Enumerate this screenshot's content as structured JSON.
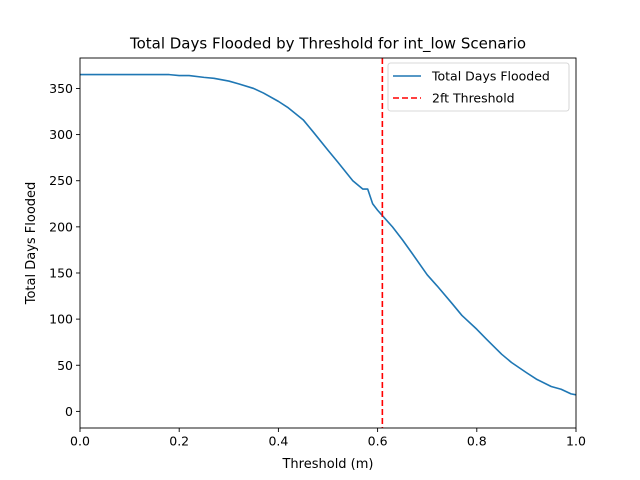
{
  "chart_data": {
    "type": "line",
    "title": "Total Days Flooded by Threshold for int_low Scenario",
    "xlabel": "Threshold (m)",
    "ylabel": "Total Days Flooded",
    "xlim": [
      0.0,
      1.0
    ],
    "ylim": [
      -18,
      383
    ],
    "xticks": [
      0.0,
      0.2,
      0.4,
      0.6,
      0.8,
      1.0
    ],
    "xtick_labels": [
      "0.0",
      "0.2",
      "0.4",
      "0.6",
      "0.8",
      "1.0"
    ],
    "yticks": [
      0,
      50,
      100,
      150,
      200,
      250,
      300,
      350
    ],
    "ytick_labels": [
      "0",
      "50",
      "100",
      "150",
      "200",
      "250",
      "300",
      "350"
    ],
    "grid": false,
    "legend_position": "upper right",
    "series": [
      {
        "name": "Total Days Flooded",
        "color": "#1f77b4",
        "x": [
          0.0,
          0.05,
          0.1,
          0.15,
          0.18,
          0.2,
          0.22,
          0.25,
          0.27,
          0.3,
          0.32,
          0.35,
          0.37,
          0.4,
          0.42,
          0.45,
          0.47,
          0.5,
          0.52,
          0.55,
          0.57,
          0.58,
          0.59,
          0.6,
          0.61,
          0.63,
          0.65,
          0.67,
          0.7,
          0.72,
          0.75,
          0.77,
          0.8,
          0.82,
          0.85,
          0.87,
          0.9,
          0.92,
          0.95,
          0.97,
          0.99,
          1.0
        ],
        "y": [
          365,
          365,
          365,
          365,
          365,
          364,
          364,
          362,
          361,
          358,
          355,
          350,
          345,
          336,
          329,
          316,
          303,
          283,
          270,
          250,
          241,
          241,
          225,
          218,
          212,
          200,
          186,
          171,
          148,
          136,
          117,
          104,
          89,
          78,
          62,
          53,
          42,
          35,
          27,
          24,
          19,
          18
        ]
      },
      {
        "name": "2ft Threshold",
        "color": "#ff0000",
        "style": "dashed",
        "vline_x": 0.6096
      }
    ]
  }
}
